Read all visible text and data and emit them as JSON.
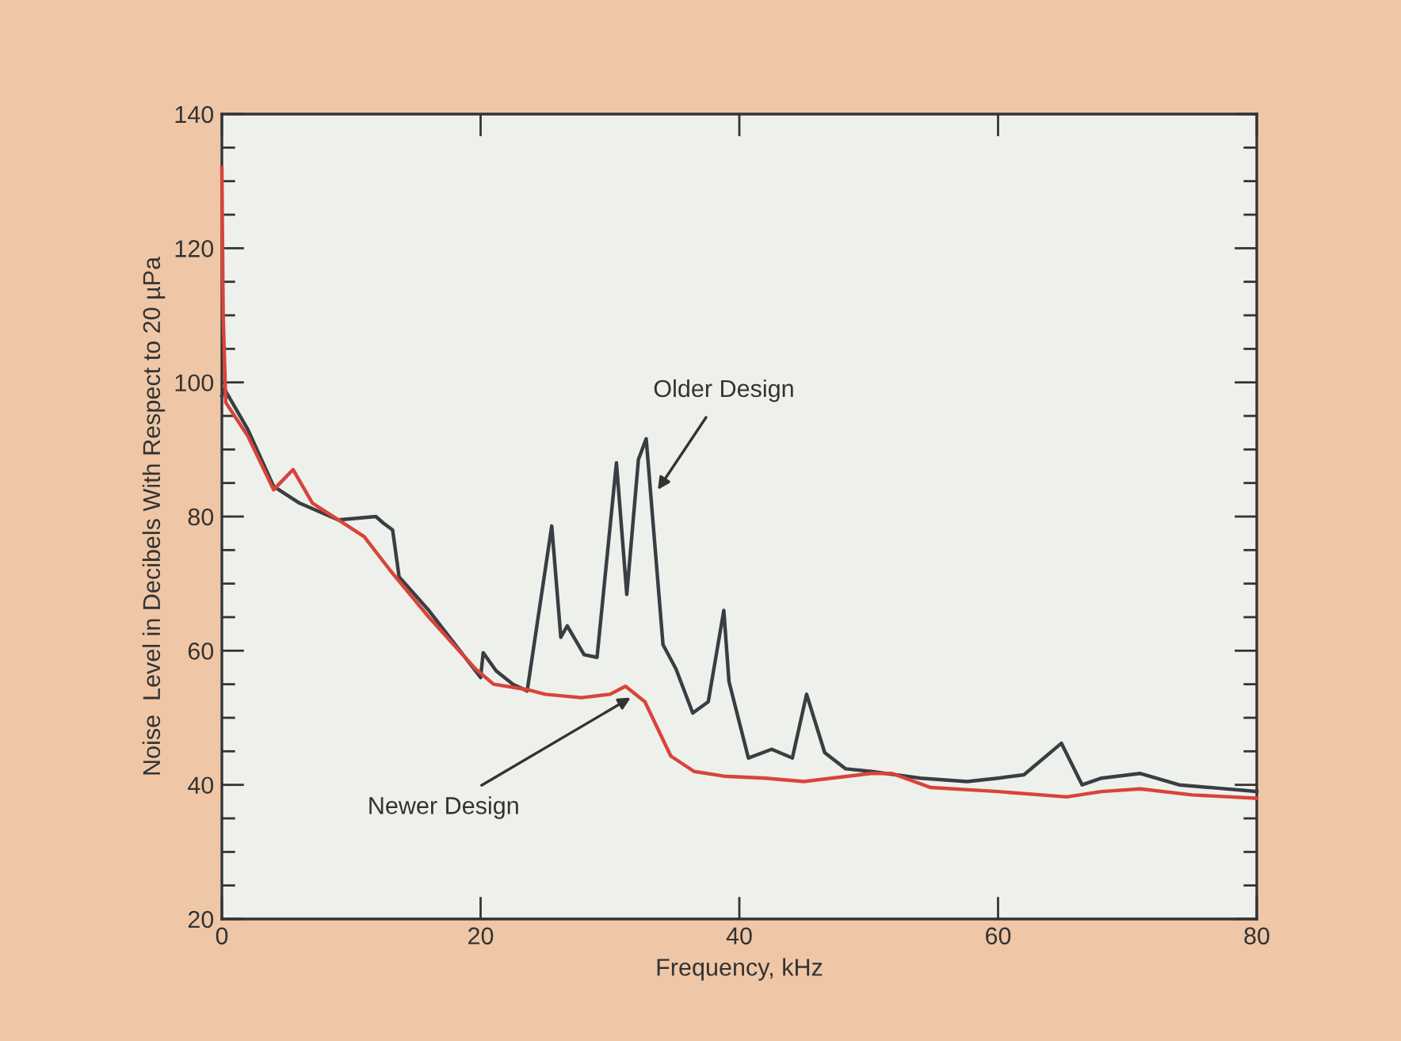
{
  "chart_data": {
    "type": "line",
    "xlabel": "Frequency, kHz",
    "ylabel": "Noise  Level in Decibels With Respect to 20 µPa",
    "xlim": [
      0,
      80
    ],
    "xticks": [
      0,
      20,
      40,
      60,
      80
    ],
    "ylim": [
      20,
      140
    ],
    "yticks": [
      20,
      {
        "value": 25,
        "label": null
      },
      {
        "value": 30,
        "label": null
      },
      {
        "value": 35,
        "label": null
      },
      40,
      {
        "value": 45,
        "label": null
      },
      {
        "value": 50,
        "label": null
      },
      {
        "value": 55,
        "label": null
      },
      60,
      {
        "value": 65,
        "label": null
      },
      {
        "value": 70,
        "label": null
      },
      {
        "value": 75,
        "label": null
      },
      80,
      {
        "value": 85,
        "label": null
      },
      {
        "value": 90,
        "label": null
      },
      {
        "value": 95,
        "label": null
      },
      100,
      {
        "value": 105,
        "label": null
      },
      {
        "value": 110,
        "label": null
      },
      {
        "value": 115,
        "label": null
      },
      120,
      {
        "value": 125,
        "label": null
      },
      {
        "value": 130,
        "label": null
      },
      {
        "value": 135,
        "label": null
      },
      140
    ],
    "grid": false,
    "marker": "none",
    "line_style": "solid",
    "series": [
      {
        "color": "#3a3d42",
        "x": [
          0,
          0.2,
          2,
          4,
          6,
          9,
          11.9,
          12.5,
          13.2,
          13.7,
          16,
          18,
          20,
          20.2,
          21.2,
          22.5,
          23.6,
          25.5,
          26.2,
          26.7,
          28,
          29,
          30.5,
          31.3,
          32.2,
          32.8,
          34.1,
          35.1,
          36.4,
          37.6,
          38.8,
          39.2,
          40.7,
          42.5,
          44.1,
          45.2,
          46.6,
          48.2,
          50.2,
          54,
          57.6,
          60,
          62,
          64.9,
          66.5,
          68,
          71,
          74,
          77,
          80
        ],
        "values": [
          98,
          99,
          93,
          84.5,
          82,
          79.5,
          80,
          79,
          78,
          71,
          66,
          61,
          56,
          59.7,
          57,
          55,
          54,
          78.6,
          62,
          63.7,
          59.4,
          59,
          88,
          68.4,
          88.5,
          91.6,
          60.9,
          57.3,
          50.7,
          52.4,
          66,
          55.4,
          44,
          45.3,
          44,
          53.5,
          44.8,
          42.4,
          42,
          41,
          40.5,
          41,
          41.5,
          46.2,
          40,
          41,
          41.7,
          40,
          39.5,
          39
        ]
      },
      {
        "color": "#d8443a",
        "x": [
          0,
          0.1,
          0.3,
          2,
          4,
          5.5,
          7,
          9,
          11,
          13,
          16,
          19.6,
          21,
          23.6,
          25,
          27.8,
          30,
          31.2,
          32.7,
          34.7,
          36.5,
          38.8,
          42,
          45,
          50.2,
          51.8,
          54.8,
          60,
          65.3,
          68,
          71,
          75,
          80
        ],
        "values": [
          132,
          110,
          97,
          92,
          84,
          87,
          82,
          79.5,
          77,
          72,
          65,
          57.3,
          55,
          54.2,
          53.5,
          53,
          53.5,
          54.7,
          52.4,
          44.3,
          42,
          41.3,
          41,
          40.5,
          41.7,
          41.7,
          39.6,
          39,
          38.2,
          39,
          39.4,
          38.5,
          38
        ]
      }
    ],
    "annotations": [
      {
        "text": "Older Design",
        "x": 33.7,
        "y": 84
      },
      {
        "text": "Newer Design",
        "x": 31.6,
        "y": 53
      }
    ]
  }
}
